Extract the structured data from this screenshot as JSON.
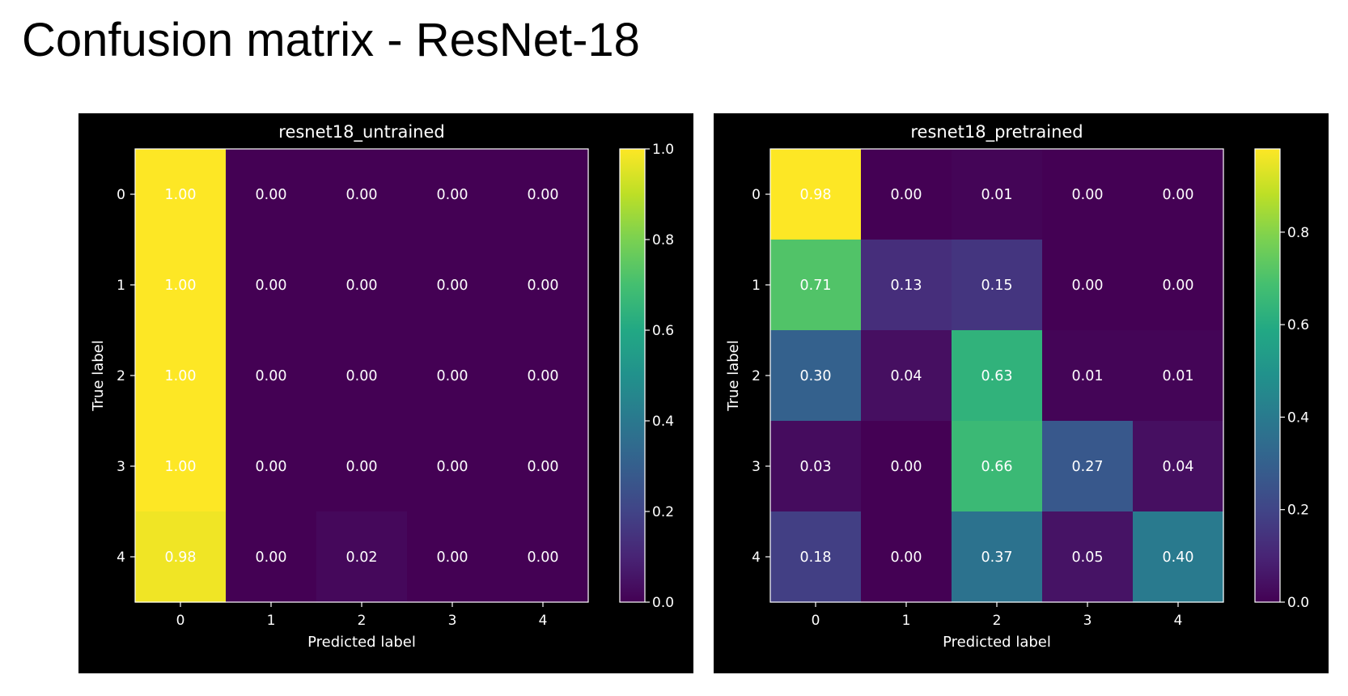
{
  "page": {
    "title": "Confusion matrix - ResNet-18"
  },
  "chart_data": [
    {
      "type": "heatmap",
      "title": "resnet18_untrained",
      "xlabel": "Predicted label",
      "ylabel": "True label",
      "x_categories": [
        "0",
        "1",
        "2",
        "3",
        "4"
      ],
      "y_categories": [
        "0",
        "1",
        "2",
        "3",
        "4"
      ],
      "values": [
        [
          1.0,
          0.0,
          0.0,
          0.0,
          0.0
        ],
        [
          1.0,
          0.0,
          0.0,
          0.0,
          0.0
        ],
        [
          1.0,
          0.0,
          0.0,
          0.0,
          0.0
        ],
        [
          1.0,
          0.0,
          0.0,
          0.0,
          0.0
        ],
        [
          0.98,
          0.0,
          0.02,
          0.0,
          0.0
        ]
      ],
      "colormap": "viridis",
      "colorbar": {
        "range": [
          0.0,
          1.0
        ],
        "ticks": [
          0.0,
          0.2,
          0.4,
          0.6,
          0.8,
          1.0
        ],
        "tick_labels": [
          "0.0",
          "0.2",
          "0.4",
          "0.6",
          "0.8",
          "1.0"
        ]
      }
    },
    {
      "type": "heatmap",
      "title": "resnet18_pretrained",
      "xlabel": "Predicted label",
      "ylabel": "True label",
      "x_categories": [
        "0",
        "1",
        "2",
        "3",
        "4"
      ],
      "y_categories": [
        "0",
        "1",
        "2",
        "3",
        "4"
      ],
      "values": [
        [
          0.98,
          0.0,
          0.01,
          0.0,
          0.0
        ],
        [
          0.71,
          0.13,
          0.15,
          0.0,
          0.0
        ],
        [
          0.3,
          0.04,
          0.63,
          0.01,
          0.01
        ],
        [
          0.03,
          0.0,
          0.66,
          0.27,
          0.04
        ],
        [
          0.18,
          0.0,
          0.37,
          0.05,
          0.4
        ]
      ],
      "colormap": "viridis",
      "colorbar": {
        "range": [
          0.0,
          0.98
        ],
        "ticks": [
          0.0,
          0.2,
          0.4,
          0.6,
          0.8
        ],
        "tick_labels": [
          "0.0",
          "0.2",
          "0.4",
          "0.6",
          "0.8"
        ]
      }
    }
  ],
  "colors": {
    "panel_background": "#000000",
    "text": "#ffffff",
    "page_background": "#ffffff",
    "title_text": "#000000"
  }
}
